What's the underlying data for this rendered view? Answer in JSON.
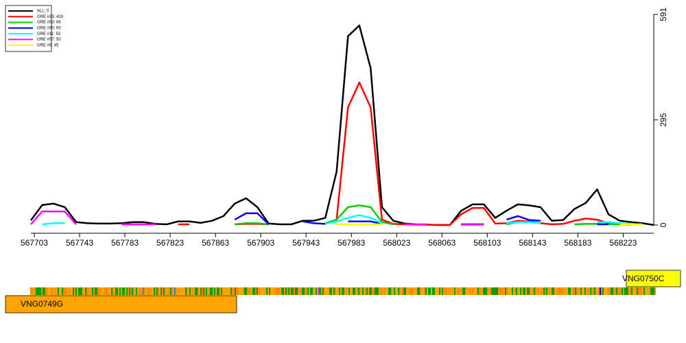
{
  "chart_data": {
    "type": "line",
    "x": [
      567700,
      567710,
      567720,
      567730,
      567740,
      567750,
      567760,
      567770,
      567780,
      567790,
      567800,
      567810,
      567820,
      567830,
      567840,
      567850,
      567860,
      567870,
      567880,
      567890,
      567900,
      567910,
      567920,
      567930,
      567940,
      567950,
      567960,
      567970,
      567980,
      567990,
      568000,
      568010,
      568020,
      568030,
      568040,
      568050,
      568060,
      568070,
      568080,
      568090,
      568100,
      568110,
      568120,
      568130,
      568140,
      568150,
      568160,
      568170,
      568180,
      568190,
      568200,
      568210,
      568220,
      568230,
      568240,
      568250
    ],
    "series": [
      {
        "name": "ALL: 0",
        "color": "#000000",
        "values": [
          13,
          56,
          60,
          50,
          8,
          5,
          4,
          4,
          5,
          8,
          8,
          3,
          2,
          10,
          10,
          6,
          12,
          25,
          60,
          75,
          50,
          4,
          2,
          2,
          12,
          12,
          20,
          150,
          530,
          560,
          440,
          50,
          12,
          4,
          2,
          1,
          0,
          0,
          40,
          58,
          58,
          20,
          40,
          58,
          55,
          50,
          12,
          14,
          45,
          62,
          100,
          30,
          12,
          8,
          5,
          0
        ]
      },
      {
        "name": "GRE #15: 433",
        "color": "#ff0000",
        "values": [
          null,
          null,
          null,
          null,
          null,
          null,
          null,
          null,
          2,
          2,
          2,
          null,
          null,
          2,
          2,
          null,
          null,
          null,
          2,
          3,
          3,
          2,
          null,
          null,
          null,
          null,
          3,
          15,
          330,
          400,
          330,
          15,
          3,
          2,
          1,
          1,
          0,
          0,
          30,
          48,
          48,
          4,
          5,
          12,
          10,
          5,
          2,
          3,
          12,
          18,
          15,
          5,
          2,
          1,
          null,
          null
        ]
      },
      {
        "name": "GRE #53: 65",
        "color": "#00cc00",
        "values": [
          null,
          null,
          null,
          null,
          null,
          null,
          null,
          null,
          null,
          null,
          null,
          null,
          null,
          null,
          null,
          null,
          null,
          null,
          2,
          5,
          5,
          2,
          null,
          null,
          null,
          null,
          5,
          15,
          50,
          55,
          50,
          8,
          2,
          null,
          null,
          null,
          null,
          null,
          2,
          2,
          2,
          null,
          2,
          8,
          8,
          5,
          null,
          null,
          2,
          3,
          3,
          2,
          2,
          2,
          2,
          null
        ]
      },
      {
        "name": "GRE #90: 60",
        "color": "#0000ff",
        "values": [
          null,
          null,
          null,
          null,
          null,
          null,
          null,
          null,
          null,
          null,
          null,
          null,
          null,
          null,
          null,
          null,
          null,
          null,
          15,
          33,
          33,
          2,
          null,
          null,
          10,
          5,
          3,
          null,
          10,
          10,
          10,
          3,
          null,
          null,
          null,
          null,
          null,
          null,
          2,
          2,
          2,
          null,
          15,
          25,
          14,
          12,
          null,
          null,
          null,
          null,
          2,
          2,
          null,
          null,
          null,
          null
        ]
      },
      {
        "name": "GRE #11: 53",
        "color": "#00ffff",
        "values": [
          null,
          2,
          5,
          5,
          null,
          null,
          null,
          null,
          null,
          null,
          null,
          null,
          null,
          null,
          null,
          null,
          null,
          null,
          null,
          null,
          null,
          null,
          null,
          null,
          null,
          null,
          3,
          10,
          20,
          28,
          20,
          5,
          null,
          null,
          null,
          null,
          null,
          null,
          null,
          null,
          null,
          null,
          5,
          8,
          8,
          5,
          null,
          null,
          null,
          null,
          8,
          8,
          5,
          3,
          null,
          null
        ]
      },
      {
        "name": "GRE #57: 50",
        "color": "#ff00ff",
        "values": [
          2,
          38,
          38,
          38,
          2,
          null,
          null,
          null,
          2,
          2,
          2,
          2,
          null,
          null,
          null,
          null,
          null,
          null,
          null,
          null,
          null,
          null,
          null,
          null,
          null,
          null,
          null,
          null,
          null,
          null,
          null,
          null,
          null,
          2,
          2,
          2,
          null,
          null,
          1,
          1,
          1,
          null,
          null,
          null,
          null,
          null,
          null,
          null,
          null,
          null,
          null,
          null,
          null,
          null,
          null,
          null
        ]
      },
      {
        "name": "GRE #6: 45",
        "color": "#ffff00",
        "values": [
          null,
          null,
          null,
          null,
          null,
          null,
          null,
          null,
          null,
          null,
          null,
          null,
          null,
          null,
          null,
          null,
          null,
          null,
          null,
          null,
          null,
          null,
          null,
          null,
          null,
          null,
          null,
          2,
          2,
          2,
          2,
          2,
          null,
          null,
          null,
          null,
          null,
          null,
          null,
          null,
          null,
          null,
          null,
          null,
          null,
          null,
          null,
          null,
          null,
          null,
          null,
          null,
          2,
          2,
          2,
          null
        ]
      }
    ],
    "xlim": [
      567700,
      568250
    ],
    "xticks": [
      567703,
      567743,
      567783,
      567823,
      567863,
      567903,
      567943,
      567983,
      568023,
      568063,
      568103,
      568143,
      568183,
      568223
    ],
    "ylim": [
      0,
      591
    ],
    "yticks": [
      0,
      295,
      591
    ],
    "legend": "top-left"
  },
  "genes": [
    {
      "label": "VNG0750C"
    },
    {
      "label": "VNG0749G"
    }
  ]
}
